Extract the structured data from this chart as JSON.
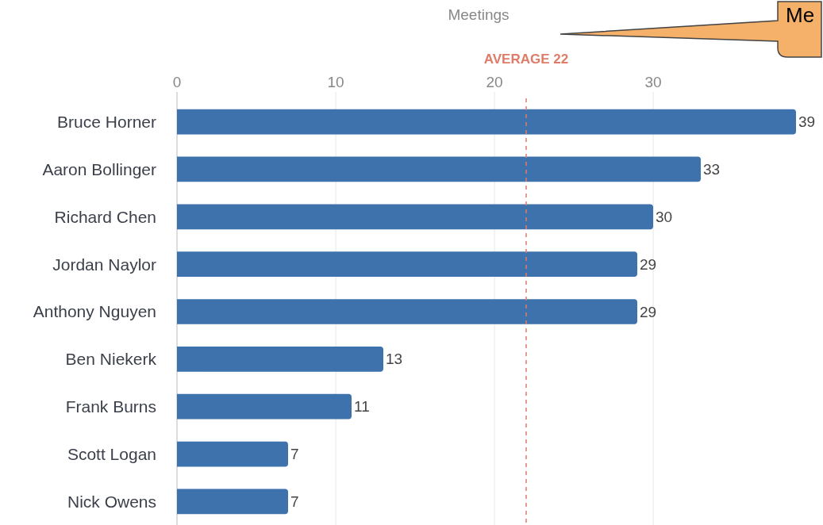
{
  "chart_data": {
    "type": "bar",
    "orientation": "horizontal",
    "xlabel": "Meetings",
    "categories": [
      "Bruce Horner",
      "Aaron Bollinger",
      "Richard Chen",
      "Jordan Naylor",
      "Anthony Nguyen",
      "Ben Niekerk",
      "Frank Burns",
      "Scott Logan",
      "Nick Owens"
    ],
    "values": [
      39,
      33,
      30,
      29,
      29,
      13,
      11,
      7,
      7
    ],
    "color": "#3d72ad",
    "data_labels": true,
    "xlim": [
      0,
      39
    ],
    "xticks": [
      0,
      10,
      20,
      30
    ],
    "grid": "x",
    "ref_lines": [
      {
        "axis": "x",
        "value": 22,
        "label": "AVERAGE 22",
        "color": "#e07b67",
        "line_style": "dashed"
      }
    ],
    "annotations": [
      "Me"
    ]
  }
}
